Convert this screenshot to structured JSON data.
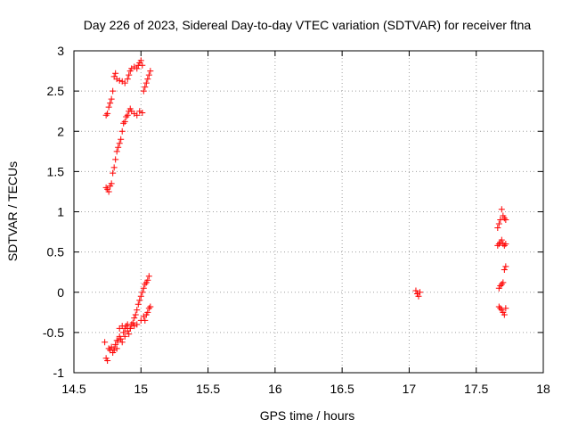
{
  "chart_data": {
    "type": "scatter",
    "title": "Day 226 of 2023, Sidereal Day-to-day VTEC variation (SDTVAR) for receiver ftna",
    "xlabel": "GPS time / hours",
    "ylabel": "SDTVAR / TECUs",
    "xlim": [
      14.5,
      18
    ],
    "ylim": [
      -1,
      3
    ],
    "xticks": [
      "14.5",
      "15",
      "15.5",
      "16",
      "16.5",
      "17",
      "17.5",
      "18"
    ],
    "yticks": [
      "-1",
      "-0.5",
      "0",
      "0.5",
      "1",
      "1.5",
      "2",
      "2.5",
      "3"
    ],
    "grid": true,
    "marker": "+",
    "color": "#ff0000",
    "series": [
      {
        "points": [
          [
            14.74,
            2.2
          ],
          [
            14.75,
            2.22
          ],
          [
            14.76,
            2.3
          ],
          [
            14.77,
            2.35
          ],
          [
            14.78,
            2.4
          ],
          [
            14.79,
            2.5
          ],
          [
            14.8,
            2.68
          ],
          [
            14.81,
            2.72
          ],
          [
            14.82,
            2.65
          ],
          [
            14.84,
            2.63
          ],
          [
            14.86,
            2.62
          ],
          [
            14.88,
            2.6
          ],
          [
            14.9,
            2.65
          ],
          [
            14.91,
            2.7
          ],
          [
            14.92,
            2.75
          ],
          [
            14.93,
            2.78
          ],
          [
            14.95,
            2.8
          ],
          [
            14.97,
            2.78
          ],
          [
            14.98,
            2.82
          ],
          [
            14.99,
            2.85
          ],
          [
            15.0,
            2.88
          ],
          [
            15.01,
            2.82
          ],
          [
            15.02,
            2.5
          ],
          [
            15.03,
            2.55
          ],
          [
            15.04,
            2.6
          ],
          [
            15.05,
            2.65
          ],
          [
            15.06,
            2.7
          ],
          [
            15.07,
            2.75
          ],
          [
            14.74,
            1.3
          ],
          [
            14.75,
            1.28
          ],
          [
            14.76,
            1.25
          ],
          [
            14.77,
            1.32
          ],
          [
            14.78,
            1.35
          ],
          [
            14.79,
            1.48
          ],
          [
            14.8,
            1.55
          ],
          [
            14.81,
            1.65
          ],
          [
            14.82,
            1.75
          ],
          [
            14.83,
            1.8
          ],
          [
            14.84,
            1.85
          ],
          [
            14.85,
            1.9
          ],
          [
            14.86,
            2.0
          ],
          [
            14.87,
            2.1
          ],
          [
            14.88,
            2.12
          ],
          [
            14.89,
            2.18
          ],
          [
            14.9,
            2.2
          ],
          [
            14.91,
            2.25
          ],
          [
            14.92,
            2.28
          ],
          [
            14.93,
            2.25
          ],
          [
            14.95,
            2.22
          ],
          [
            14.97,
            2.2
          ],
          [
            14.99,
            2.25
          ],
          [
            15.01,
            2.23
          ],
          [
            14.73,
            -0.62
          ],
          [
            14.74,
            -0.82
          ],
          [
            14.75,
            -0.85
          ],
          [
            14.76,
            -0.7
          ],
          [
            14.77,
            -0.72
          ],
          [
            14.78,
            -0.68
          ],
          [
            14.79,
            -0.75
          ],
          [
            14.8,
            -0.7
          ],
          [
            14.81,
            -0.65
          ],
          [
            14.82,
            -0.7
          ],
          [
            14.83,
            -0.6
          ],
          [
            14.84,
            -0.55
          ],
          [
            14.85,
            -0.58
          ],
          [
            14.86,
            -0.62
          ],
          [
            14.87,
            -0.5
          ],
          [
            14.88,
            -0.45
          ],
          [
            14.89,
            -0.42
          ],
          [
            14.9,
            -0.48
          ],
          [
            14.91,
            -0.52
          ],
          [
            14.92,
            -0.45
          ],
          [
            14.93,
            -0.4
          ],
          [
            14.94,
            -0.38
          ],
          [
            14.95,
            -0.32
          ],
          [
            14.96,
            -0.28
          ],
          [
            14.97,
            -0.22
          ],
          [
            14.98,
            -0.15
          ],
          [
            14.99,
            -0.1
          ],
          [
            15.0,
            -0.05
          ],
          [
            15.01,
            0.0
          ],
          [
            15.02,
            0.05
          ],
          [
            15.03,
            0.1
          ],
          [
            15.04,
            0.12
          ],
          [
            15.05,
            0.15
          ],
          [
            15.06,
            0.2
          ],
          [
            14.8,
            -0.72
          ],
          [
            14.82,
            -0.6
          ],
          [
            14.84,
            -0.45
          ],
          [
            14.86,
            -0.42
          ],
          [
            14.88,
            -0.55
          ],
          [
            14.9,
            -0.4
          ],
          [
            14.92,
            -0.45
          ],
          [
            14.95,
            -0.42
          ],
          [
            14.97,
            -0.4
          ],
          [
            15.0,
            -0.35
          ],
          [
            15.02,
            -0.3
          ],
          [
            15.03,
            -0.35
          ],
          [
            15.04,
            -0.28
          ],
          [
            15.05,
            -0.25
          ],
          [
            15.06,
            -0.2
          ],
          [
            15.07,
            -0.18
          ],
          [
            17.05,
            0.02
          ],
          [
            17.06,
            -0.02
          ],
          [
            17.07,
            -0.05
          ],
          [
            17.08,
            0.0
          ],
          [
            17.66,
            0.8
          ],
          [
            17.67,
            0.85
          ],
          [
            17.68,
            0.9
          ],
          [
            17.69,
            1.03
          ],
          [
            17.7,
            0.95
          ],
          [
            17.71,
            0.92
          ],
          [
            17.72,
            0.9
          ],
          [
            17.66,
            0.58
          ],
          [
            17.67,
            0.6
          ],
          [
            17.68,
            0.62
          ],
          [
            17.69,
            0.65
          ],
          [
            17.7,
            0.6
          ],
          [
            17.71,
            0.58
          ],
          [
            17.72,
            0.6
          ],
          [
            17.67,
            0.05
          ],
          [
            17.68,
            0.08
          ],
          [
            17.69,
            0.1
          ],
          [
            17.7,
            0.12
          ],
          [
            17.71,
            0.28
          ],
          [
            17.72,
            0.32
          ],
          [
            17.67,
            -0.18
          ],
          [
            17.68,
            -0.2
          ],
          [
            17.69,
            -0.22
          ],
          [
            17.7,
            -0.25
          ],
          [
            17.71,
            -0.28
          ],
          [
            17.72,
            -0.2
          ]
        ]
      }
    ]
  }
}
